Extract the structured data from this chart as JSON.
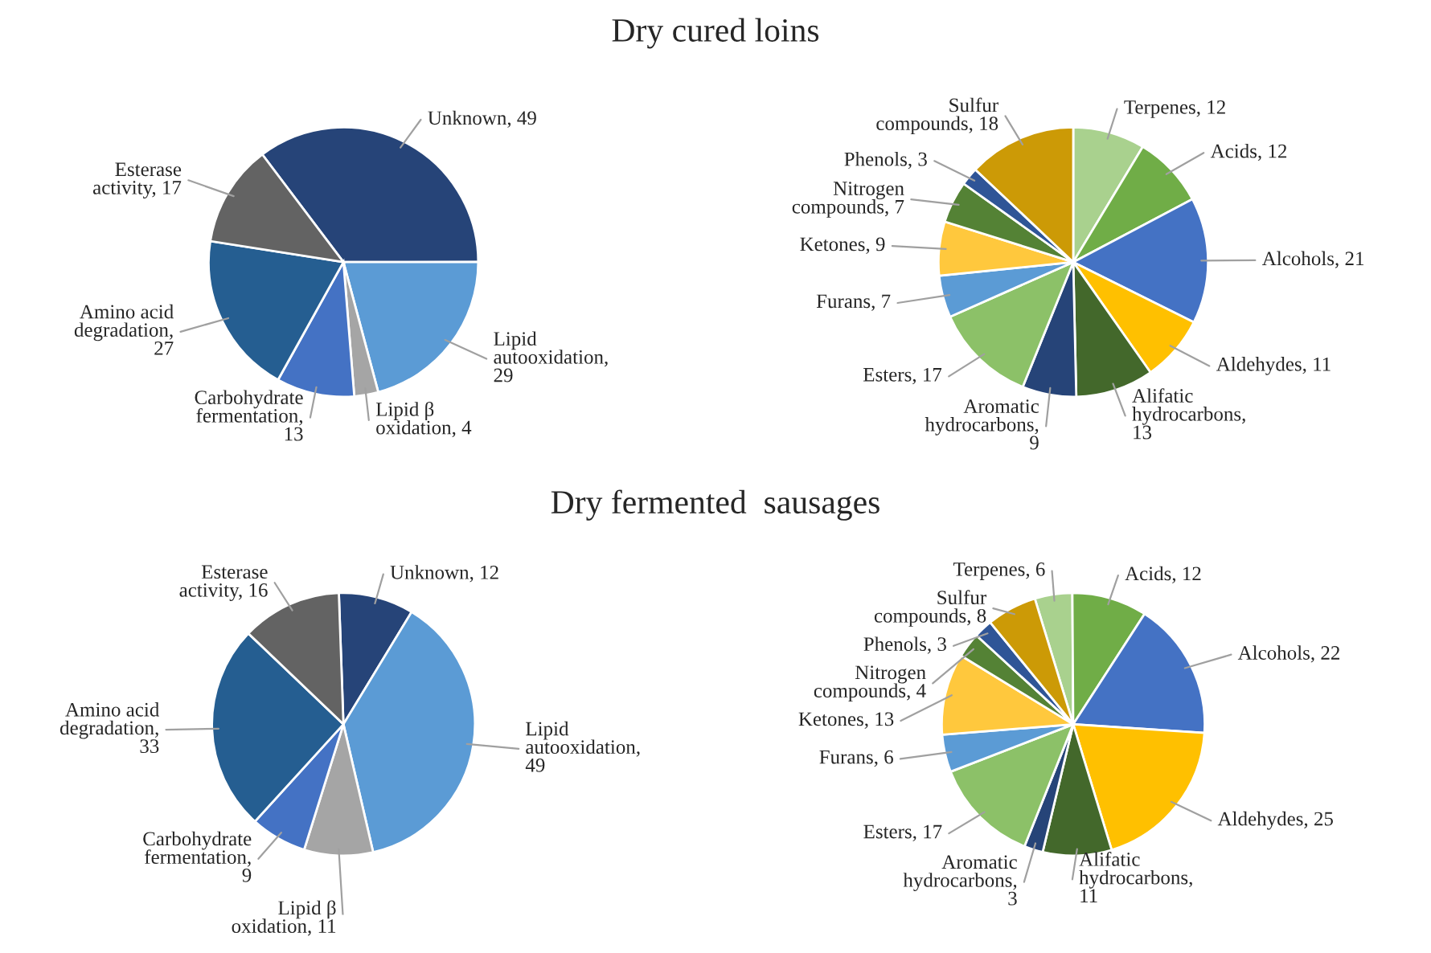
{
  "chart_data": [
    {
      "type": "pie",
      "title": "Dry cured loins",
      "categories": [
        "Unknown, 49",
        "Lipid autooxidation, 29",
        "Lipid β oxidation, 4",
        "Carbohydrate fermentation, 13",
        "Amino acid degradation, 27",
        "Esterase activity, 17"
      ],
      "values": [
        49,
        29,
        4,
        13,
        27,
        17
      ],
      "colors": [
        "#264478",
        "#5b9bd5",
        "#a5a5a5",
        "#4472c4",
        "#255e91",
        "#636363"
      ]
    },
    {
      "type": "pie",
      "categories": [
        "Terpenes, 12",
        "Acids, 12",
        "Alcohols, 21",
        "Aldehydes, 11",
        "Alifatic hydrocarbons, 13",
        "Aromatic hydrocarbons, 9",
        "Esters, 17",
        "Furans, 7",
        "Ketones, 9",
        "Nitrogen compounds, 7",
        "Phenols, 3",
        "Sulfur compounds, 18"
      ],
      "values": [
        12,
        12,
        21,
        11,
        13,
        9,
        17,
        7,
        9,
        7,
        3,
        18
      ],
      "colors": [
        "#a9d18e",
        "#70ad47",
        "#4472c4",
        "#ffc000",
        "#43682b",
        "#264478",
        "#8cc168",
        "#5b9bd5",
        "#ffc83d",
        "#548235",
        "#2f5597",
        "#cc9a06"
      ]
    },
    {
      "type": "pie",
      "title": "Dry fermented  sausages",
      "categories": [
        "Unknown, 12",
        "Lipid autooxidation, 49",
        "Lipid β oxidation, 11",
        "Carbohydrate fermentation, 9",
        "Amino acid degradation, 33",
        "Esterase activity, 16"
      ],
      "values": [
        12,
        49,
        11,
        9,
        33,
        16
      ],
      "colors": [
        "#264478",
        "#5b9bd5",
        "#a5a5a5",
        "#4472c4",
        "#255e91",
        "#636363"
      ]
    },
    {
      "type": "pie",
      "categories": [
        "Terpenes, 6",
        "Acids, 12",
        "Alcohols, 22",
        "Aldehydes, 25",
        "Alifatic hydrocarbons, 11",
        "Aromatic hydrocarbons, 3",
        "Esters, 17",
        "Furans, 6",
        "Ketones, 13",
        "Nitrogen compounds, 4",
        "Phenols, 3",
        "Sulfur compounds, 8"
      ],
      "values": [
        6,
        12,
        22,
        25,
        11,
        3,
        17,
        6,
        13,
        4,
        3,
        8
      ],
      "colors": [
        "#a9d18e",
        "#70ad47",
        "#4472c4",
        "#ffc000",
        "#43682b",
        "#264478",
        "#8cc168",
        "#5b9bd5",
        "#ffc83d",
        "#548235",
        "#2f5597",
        "#cc9a06"
      ]
    }
  ]
}
